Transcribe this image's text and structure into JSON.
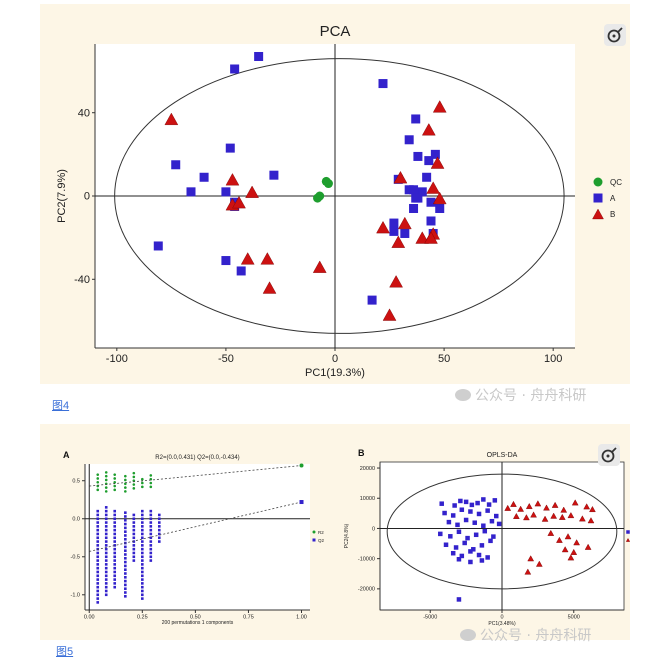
{
  "fig4": {
    "caption": "图4",
    "watermark": "公众号 · 舟舟科研"
  },
  "fig5": {
    "caption": "图5",
    "watermark": "公众号 · 舟舟科研"
  },
  "colors": {
    "QC": "#1e9e2e",
    "A": "#3322cc",
    "B": "#cc1111",
    "panel_bg": "#fdf6e6"
  },
  "chart_data": [
    {
      "id": "pca",
      "type": "scatter",
      "title": "PCA",
      "xlabel": "PC1(19.3%)",
      "ylabel": "PC2(7.9%)",
      "xlim": [
        -110,
        110
      ],
      "ylim": [
        -73,
        73
      ],
      "xticks": [
        -100,
        -50,
        0,
        50,
        100
      ],
      "yticks": [
        -40,
        0,
        40
      ],
      "xtick_labels": [
        "-100",
        "-50",
        "0",
        "50",
        "100"
      ],
      "ytick_labels": [
        "-40",
        "0",
        "40"
      ],
      "legend_placement": "right",
      "ellipse": {
        "cx": 2,
        "cy": 0,
        "rx": 103,
        "ry": 66
      },
      "series": [
        {
          "name": "QC",
          "marker": "circle",
          "x": [
            -4,
            -3,
            -7,
            -8
          ],
          "y": [
            7,
            6,
            0,
            -1
          ]
        },
        {
          "name": "A",
          "marker": "square",
          "x": [
            -35,
            -46,
            22,
            -60,
            -73,
            -48,
            -50,
            -46,
            -66,
            -46,
            -28,
            -81,
            -50,
            -43,
            37,
            34,
            38,
            43,
            42,
            46,
            29,
            34,
            38,
            40,
            44,
            48,
            36,
            37,
            44,
            45,
            27,
            27,
            32,
            17,
            36
          ],
          "y": [
            67,
            61,
            54,
            9,
            15,
            23,
            2,
            -5,
            2,
            -3,
            10,
            -24,
            -31,
            -36,
            37,
            27,
            19,
            17,
            9,
            20,
            8,
            3,
            -1,
            2,
            -3,
            -6,
            3,
            -1,
            -12,
            -18,
            -13,
            -17,
            -18,
            -50,
            -6
          ]
        },
        {
          "name": "B",
          "marker": "triangle",
          "x": [
            -75,
            48,
            43,
            47,
            30,
            45,
            48,
            45,
            32,
            22,
            40,
            44,
            29,
            28,
            25,
            -47,
            -47,
            -38,
            -44,
            -31,
            -40,
            -30,
            -7
          ],
          "y": [
            37,
            43,
            32,
            16,
            9,
            4,
            -1,
            -18,
            -13,
            -15,
            -20,
            -20,
            -22,
            -41,
            -57,
            8,
            -4,
            2,
            -3,
            -30,
            -30,
            -44,
            -34
          ]
        }
      ]
    },
    {
      "id": "permutation",
      "type": "scatter",
      "panel_label": "A",
      "title": "R2=(0.0,0.431)  Q2=(0.0,-0.434)",
      "xlabel": "200 permutations 1 components",
      "ylabel": "",
      "xlim": [
        -0.02,
        1.04
      ],
      "ylim": [
        -1.2,
        0.72
      ],
      "xticks": [
        0,
        0.25,
        0.5,
        0.75,
        1
      ],
      "yticks": [
        -1,
        -0.5,
        0,
        0.5
      ],
      "xtick_labels": [
        "0.00",
        "0.25",
        "0.50",
        "0.75",
        "1.00"
      ],
      "ytick_labels": [
        "-1.0",
        "-0.5",
        "0.0",
        "0.5"
      ],
      "legend_placement": "right",
      "series": [
        {
          "name": "R2",
          "marker": "circle",
          "perm_x": [
            0.04,
            0.08,
            0.12,
            0.17,
            0.21,
            0.25,
            0.29
          ],
          "perm_y_range": [
            [
              0.38,
              0.6
            ],
            [
              0.36,
              0.62
            ],
            [
              0.38,
              0.6
            ],
            [
              0.36,
              0.58
            ],
            [
              0.4,
              0.6
            ],
            [
              0.42,
              0.56
            ],
            [
              0.42,
              0.58
            ]
          ],
          "point": [
            1.0,
            0.7
          ],
          "line": [
            [
              0.0,
              0.43
            ],
            [
              1.0,
              0.7
            ]
          ]
        },
        {
          "name": "Q2",
          "marker": "square",
          "perm_x": [
            0.04,
            0.08,
            0.12,
            0.17,
            0.21,
            0.25,
            0.29,
            0.33
          ],
          "perm_y_range": [
            [
              -1.1,
              0.12
            ],
            [
              -1.0,
              0.15
            ],
            [
              -0.9,
              0.12
            ],
            [
              -1.02,
              0.1
            ],
            [
              -0.55,
              0.05
            ],
            [
              -1.05,
              0.1
            ],
            [
              -0.55,
              0.1
            ],
            [
              -0.3,
              0.05
            ]
          ],
          "point": [
            1.0,
            0.22
          ],
          "line": [
            [
              0.0,
              -0.43
            ],
            [
              1.0,
              0.22
            ]
          ]
        }
      ]
    },
    {
      "id": "oplsda",
      "type": "scatter",
      "panel_label": "B",
      "title": "OPLS-DA",
      "xlabel": "PC1(3.48%)",
      "ylabel": "PC2(4.8%)",
      "xlim": [
        -8500,
        8500
      ],
      "ylim": [
        -27000,
        22000
      ],
      "xticks": [
        -5000,
        0,
        5000
      ],
      "yticks": [
        -20000,
        -10000,
        0,
        10000,
        20000
      ],
      "xtick_labels": [
        "-5000",
        "0",
        "5000"
      ],
      "ytick_labels": [
        "-20000",
        "-10000",
        "0",
        "10000",
        "20000"
      ],
      "legend_placement": "right",
      "ellipse": {
        "cx": 0,
        "cy": -1000,
        "rx": 8000,
        "ry": 19000
      },
      "series": [
        {
          "name": "A",
          "marker": "square",
          "x": [
            -4200,
            -3300,
            -2900,
            -2500,
            -2100,
            -1700,
            -1300,
            -900,
            -500,
            -4000,
            -3400,
            -2800,
            -2200,
            -1600,
            -1000,
            -400,
            -3700,
            -3100,
            -2500,
            -1900,
            -1300,
            -700,
            -200,
            -4300,
            -3600,
            -3000,
            -2400,
            -1800,
            -1200,
            -600,
            -3900,
            -3200,
            -2600,
            -2000,
            -1400,
            -800,
            -3400,
            -2800,
            -2200,
            -1600,
            -1000,
            -3000,
            -2200,
            -1400,
            -3000
          ],
          "y": [
            8200,
            7600,
            9100,
            8800,
            7800,
            8400,
            9600,
            7900,
            9300,
            5100,
            4300,
            6200,
            5600,
            4800,
            5900,
            4100,
            2100,
            1200,
            2800,
            1900,
            900,
            2400,
            1500,
            -1800,
            -2600,
            -1100,
            -3200,
            -2100,
            -900,
            -2700,
            -5400,
            -6300,
            -4800,
            -6900,
            -5600,
            -4100,
            -8200,
            -9100,
            -7600,
            -8800,
            -9600,
            -10200,
            -11100,
            -10600,
            -23500
          ]
        },
        {
          "name": "B",
          "marker": "triangle",
          "x": [
            400,
            800,
            1300,
            1900,
            2500,
            3100,
            3700,
            4300,
            5100,
            5900,
            6300,
            1000,
            1700,
            2200,
            3000,
            3600,
            4200,
            4800,
            5600,
            6200,
            3400,
            4000,
            4600,
            5200,
            4400,
            5000,
            6000,
            2000,
            4800,
            1800,
            2600
          ],
          "y": [
            6800,
            8100,
            6500,
            7400,
            8300,
            6900,
            7800,
            6200,
            8600,
            7300,
            6400,
            4100,
            3700,
            4600,
            3200,
            4200,
            3800,
            4400,
            3300,
            2700,
            -1500,
            -3800,
            -2600,
            -4600,
            -6900,
            -7800,
            -6100,
            -9900,
            -9600,
            -14300,
            -11700
          ]
        }
      ]
    }
  ]
}
